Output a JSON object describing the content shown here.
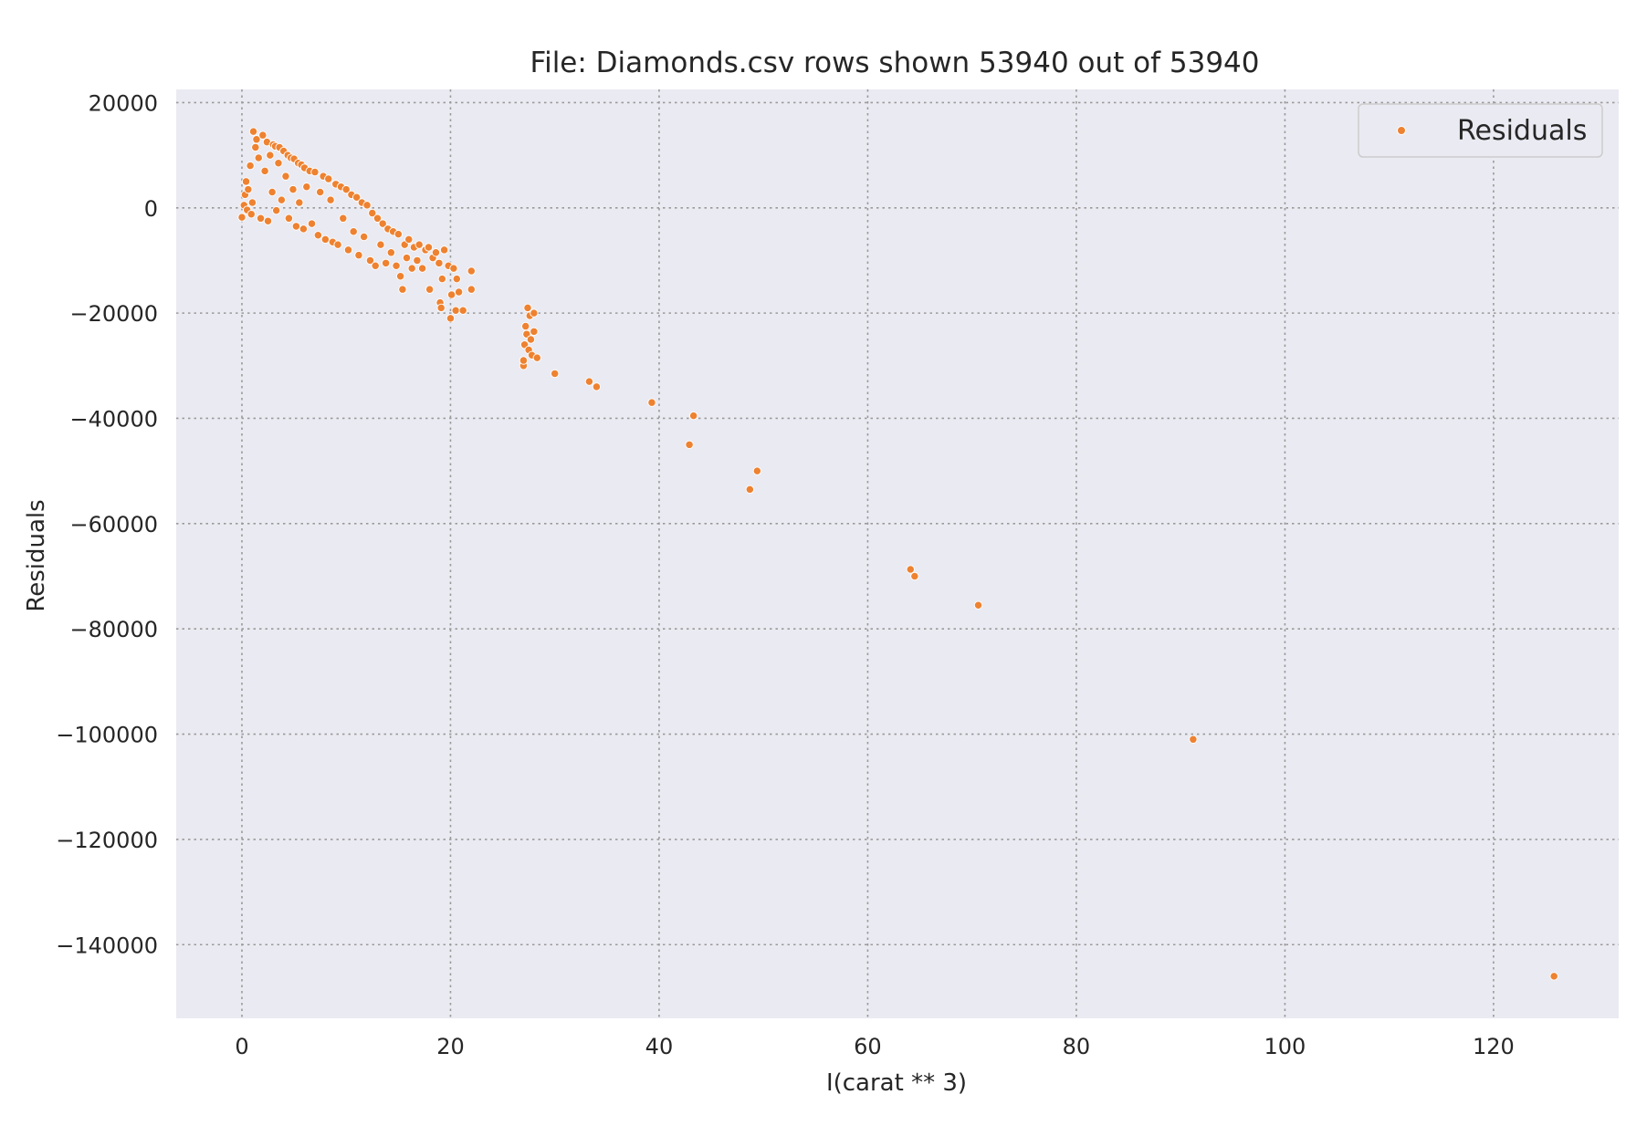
{
  "chart_data": {
    "type": "scatter",
    "title": "File: Diamonds.csv rows shown 53940 out of 53940",
    "xlabel": "I(carat ** 3)",
    "ylabel": "Residuals",
    "xlim": [
      -6.3,
      132
    ],
    "ylim": [
      -154000,
      22500
    ],
    "x_ticks": [
      0,
      20,
      40,
      60,
      80,
      100,
      120
    ],
    "x_tick_labels": [
      "0",
      "20",
      "40",
      "60",
      "80",
      "100",
      "120"
    ],
    "y_ticks": [
      20000,
      0,
      -20000,
      -40000,
      -60000,
      -80000,
      -100000,
      -120000,
      -140000
    ],
    "y_tick_labels": [
      "20000",
      "0",
      "−20000",
      "−40000",
      "−60000",
      "−80000",
      "−100000",
      "−120000",
      "−140000"
    ],
    "grid": true,
    "grid_style": "dotted",
    "plot_background": "#eaeaf2",
    "legend": {
      "position": "top-right",
      "entries": [
        "Residuals"
      ]
    },
    "series": [
      {
        "name": "Residuals",
        "color": "#ee8230",
        "points": [
          [
            0.0,
            -1800
          ],
          [
            0.2,
            500
          ],
          [
            0.3,
            2500
          ],
          [
            0.4,
            5000
          ],
          [
            0.5,
            -400
          ],
          [
            0.6,
            3500
          ],
          [
            0.8,
            8000
          ],
          [
            0.9,
            -1200
          ],
          [
            1.0,
            1000
          ],
          [
            1.1,
            14500
          ],
          [
            1.3,
            11500
          ],
          [
            1.4,
            13000
          ],
          [
            1.6,
            9500
          ],
          [
            1.8,
            -2000
          ],
          [
            2.0,
            13800
          ],
          [
            2.2,
            7000
          ],
          [
            2.4,
            12500
          ],
          [
            2.5,
            -2500
          ],
          [
            2.7,
            10000
          ],
          [
            2.9,
            3000
          ],
          [
            3.0,
            12000
          ],
          [
            3.2,
            11700
          ],
          [
            3.3,
            -500
          ],
          [
            3.5,
            8500
          ],
          [
            3.6,
            11500
          ],
          [
            3.8,
            1500
          ],
          [
            4.0,
            10800
          ],
          [
            4.2,
            6000
          ],
          [
            4.4,
            10000
          ],
          [
            4.5,
            -2000
          ],
          [
            4.7,
            9500
          ],
          [
            4.9,
            3500
          ],
          [
            5.0,
            9300
          ],
          [
            5.2,
            -3500
          ],
          [
            5.4,
            8500
          ],
          [
            5.5,
            1000
          ],
          [
            5.7,
            8200
          ],
          [
            5.9,
            -4000
          ],
          [
            6.0,
            7600
          ],
          [
            6.2,
            4000
          ],
          [
            6.5,
            7000
          ],
          [
            6.7,
            -3000
          ],
          [
            7.0,
            6800
          ],
          [
            7.3,
            -5200
          ],
          [
            7.5,
            3000
          ],
          [
            7.8,
            6000
          ],
          [
            8.0,
            -6000
          ],
          [
            8.3,
            5500
          ],
          [
            8.5,
            1500
          ],
          [
            8.7,
            -6500
          ],
          [
            9.0,
            4500
          ],
          [
            9.2,
            -7000
          ],
          [
            9.5,
            4000
          ],
          [
            9.7,
            -2000
          ],
          [
            10.0,
            3500
          ],
          [
            10.2,
            -8000
          ],
          [
            10.5,
            2500
          ],
          [
            10.7,
            -4500
          ],
          [
            11.0,
            2000
          ],
          [
            11.2,
            -9000
          ],
          [
            11.5,
            1000
          ],
          [
            11.7,
            -5500
          ],
          [
            12.0,
            500
          ],
          [
            12.3,
            -10000
          ],
          [
            12.5,
            -1000
          ],
          [
            12.8,
            -11000
          ],
          [
            13.0,
            -2000
          ],
          [
            13.3,
            -7000
          ],
          [
            13.5,
            -3000
          ],
          [
            13.8,
            -10500
          ],
          [
            14.0,
            -4000
          ],
          [
            14.3,
            -8500
          ],
          [
            14.5,
            -4500
          ],
          [
            14.8,
            -11000
          ],
          [
            15.0,
            -5000
          ],
          [
            15.2,
            -13000
          ],
          [
            15.4,
            -15500
          ],
          [
            15.6,
            -7000
          ],
          [
            15.8,
            -9500
          ],
          [
            16.0,
            -6000
          ],
          [
            16.3,
            -11500
          ],
          [
            16.5,
            -7500
          ],
          [
            16.8,
            -10000
          ],
          [
            17.0,
            -7000
          ],
          [
            17.3,
            -11500
          ],
          [
            17.6,
            -8000
          ],
          [
            17.9,
            -7500
          ],
          [
            18.0,
            -15500
          ],
          [
            18.3,
            -9500
          ],
          [
            18.6,
            -8500
          ],
          [
            18.9,
            -10500
          ],
          [
            19.0,
            -18000
          ],
          [
            19.1,
            -19000
          ],
          [
            19.2,
            -13500
          ],
          [
            19.4,
            -8000
          ],
          [
            19.8,
            -11000
          ],
          [
            20.0,
            -21000
          ],
          [
            20.1,
            -16500
          ],
          [
            20.3,
            -11500
          ],
          [
            20.5,
            -19500
          ],
          [
            20.6,
            -13500
          ],
          [
            20.8,
            -16000
          ],
          [
            21.2,
            -19500
          ],
          [
            22.0,
            -12000
          ],
          [
            22.0,
            -15500
          ],
          [
            27.0,
            -30000
          ],
          [
            27.0,
            -29000
          ],
          [
            27.1,
            -26000
          ],
          [
            27.2,
            -22500
          ],
          [
            27.3,
            -24000
          ],
          [
            27.4,
            -19000
          ],
          [
            27.5,
            -27000
          ],
          [
            27.6,
            -20500
          ],
          [
            27.7,
            -25000
          ],
          [
            27.8,
            -28000
          ],
          [
            28.0,
            -20000
          ],
          [
            28.0,
            -23500
          ],
          [
            28.3,
            -28500
          ],
          [
            30.0,
            -31500
          ],
          [
            33.3,
            -33000
          ],
          [
            34.0,
            -34000
          ],
          [
            39.3,
            -37000
          ],
          [
            42.9,
            -45000
          ],
          [
            43.3,
            -39500
          ],
          [
            48.7,
            -53500
          ],
          [
            49.4,
            -50000
          ],
          [
            64.1,
            -68700
          ],
          [
            64.5,
            -70000
          ],
          [
            70.6,
            -75500
          ],
          [
            91.2,
            -101000
          ],
          [
            125.8,
            -146000
          ]
        ]
      }
    ]
  }
}
